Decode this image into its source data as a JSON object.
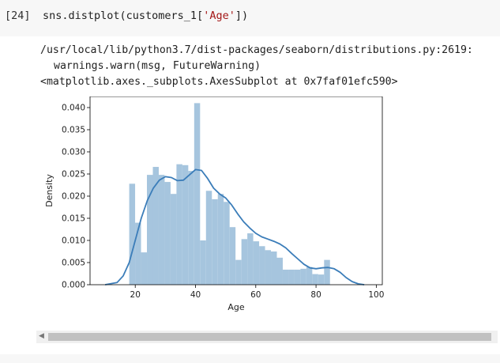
{
  "cell": {
    "prompt": "[24]",
    "code_prefix": "sns.distplot(customers_1[",
    "code_string": "'Age'",
    "code_suffix": "])"
  },
  "output": {
    "warning_path": "/usr/local/lib/python3.7/dist-packages/seaborn/distributions.py:2619:",
    "warning_call": "warnings.warn(msg, FutureWarning)",
    "repr": "<matplotlib.axes._subplots.AxesSubplot at 0x7faf01efc590>"
  },
  "colors": {
    "bar": "#a6c5de",
    "kde": "#3b7db9",
    "axis": "#000000"
  },
  "chart_data": {
    "type": "bar",
    "title": "",
    "xlabel": "Age",
    "ylabel": "Density",
    "xlim": [
      5,
      102
    ],
    "ylim": [
      0,
      0.0425
    ],
    "xticks": [
      "20",
      "40",
      "60",
      "80",
      "100"
    ],
    "yticks": [
      "0.000",
      "0.005",
      "0.010",
      "0.015",
      "0.020",
      "0.025",
      "0.030",
      "0.035",
      "0.040"
    ],
    "histogram": {
      "bin_start": 18,
      "bin_width": 1.96,
      "values": [
        0.0228,
        0.014,
        0.0073,
        0.0248,
        0.0266,
        0.0248,
        0.0232,
        0.0205,
        0.0272,
        0.027,
        0.0257,
        0.041,
        0.01,
        0.0212,
        0.0193,
        0.0205,
        0.0187,
        0.013,
        0.0056,
        0.0103,
        0.0116,
        0.0098,
        0.0087,
        0.0078,
        0.0075,
        0.0061,
        0.0034,
        0.0034,
        0.0034,
        0.0036,
        0.004,
        0.0024,
        0.0023,
        0.0056
      ]
    },
    "kde": {
      "x": [
        10,
        14,
        16,
        18,
        20,
        22,
        24,
        26,
        28,
        30,
        32,
        34,
        36,
        38,
        40,
        42,
        44,
        46,
        48,
        50,
        52,
        54,
        56,
        58,
        60,
        62,
        64,
        66,
        68,
        70,
        72,
        74,
        76,
        78,
        80,
        82,
        84,
        86,
        88,
        90,
        92,
        94,
        96
      ],
      "y": [
        0.0,
        0.0005,
        0.002,
        0.005,
        0.01,
        0.015,
        0.019,
        0.0218,
        0.0236,
        0.0244,
        0.0242,
        0.0235,
        0.0236,
        0.0248,
        0.026,
        0.0258,
        0.024,
        0.0218,
        0.0205,
        0.0196,
        0.018,
        0.016,
        0.0142,
        0.0128,
        0.0116,
        0.0108,
        0.0103,
        0.0098,
        0.0092,
        0.0083,
        0.007,
        0.0058,
        0.0046,
        0.0038,
        0.0036,
        0.0038,
        0.0039,
        0.0036,
        0.0028,
        0.0016,
        0.0007,
        0.0002,
        0.0
      ]
    }
  }
}
